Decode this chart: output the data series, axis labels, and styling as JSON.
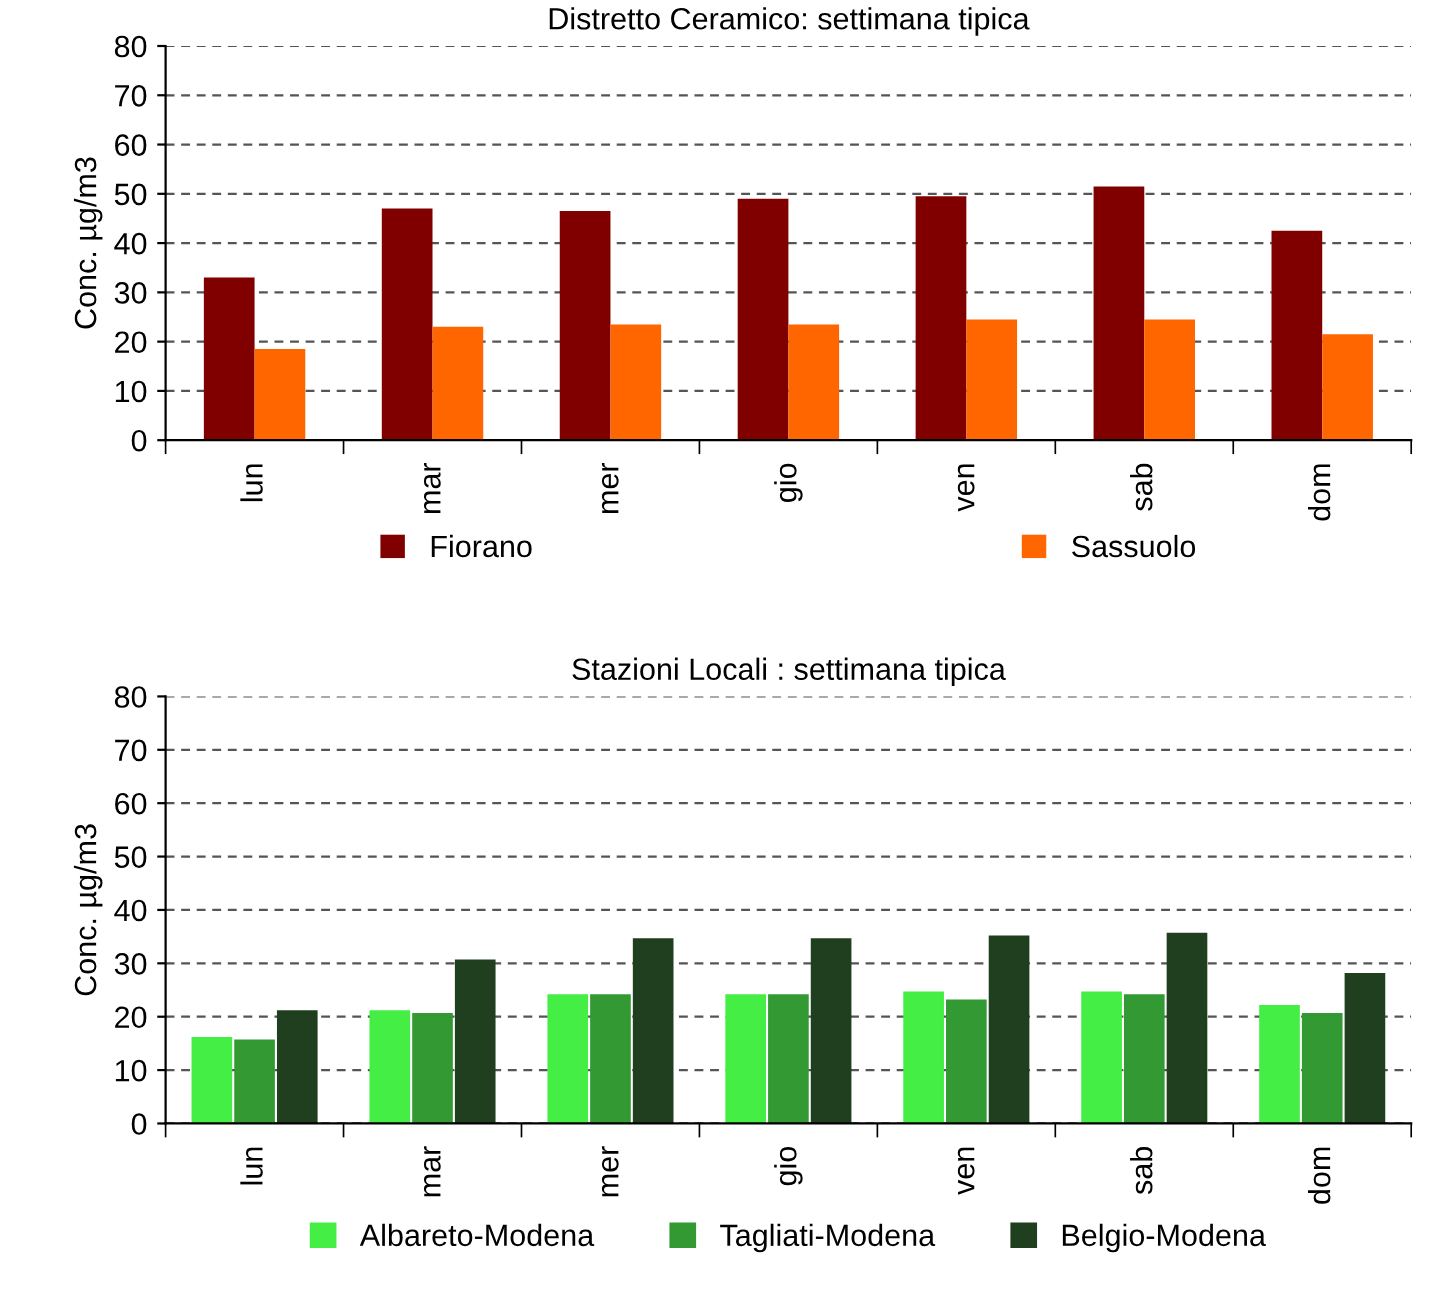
{
  "chart_data": [
    {
      "type": "bar",
      "title": "Distretto Ceramico: settimana tipica",
      "ylabel": "Conc. µg/m3",
      "categories": [
        "lun",
        "mar",
        "mer",
        "gio",
        "ven",
        "sab",
        "dom"
      ],
      "series": [
        {
          "name": "Fiorano",
          "color": "#800000",
          "values": [
            33,
            47,
            46.5,
            49,
            49.5,
            51.5,
            42.5
          ]
        },
        {
          "name": "Sassuolo",
          "color": "#ff6600",
          "values": [
            18.5,
            23,
            23.5,
            23.5,
            24.5,
            24.5,
            21.5
          ]
        }
      ],
      "ylim": [
        0,
        80
      ],
      "yticks": [
        0,
        10,
        20,
        30,
        40,
        50,
        60,
        70,
        80
      ],
      "grid": "y",
      "legend": "bottom"
    },
    {
      "type": "bar",
      "title": "Stazioni Locali : settimana tipica",
      "ylabel": "Conc. µg/m3",
      "categories": [
        "lun",
        "mar",
        "mer",
        "gio",
        "ven",
        "sab",
        "dom"
      ],
      "series": [
        {
          "name": "Albareto-Modena",
          "color": "#44ee44",
          "values": [
            16,
            21,
            24,
            24,
            24.5,
            24.5,
            22
          ]
        },
        {
          "name": "Tagliati-Modena",
          "color": "#339933",
          "values": [
            15.5,
            20.5,
            24,
            24,
            23,
            24,
            20.5
          ]
        },
        {
          "name": "Belgio-Modena",
          "color": "#1f3f1f",
          "values": [
            21,
            30.5,
            34.5,
            34.5,
            35,
            35.5,
            28
          ]
        }
      ],
      "ylim": [
        0,
        80
      ],
      "yticks": [
        0,
        10,
        20,
        30,
        40,
        50,
        60,
        70,
        80
      ],
      "grid": "y",
      "legend": "bottom"
    }
  ]
}
